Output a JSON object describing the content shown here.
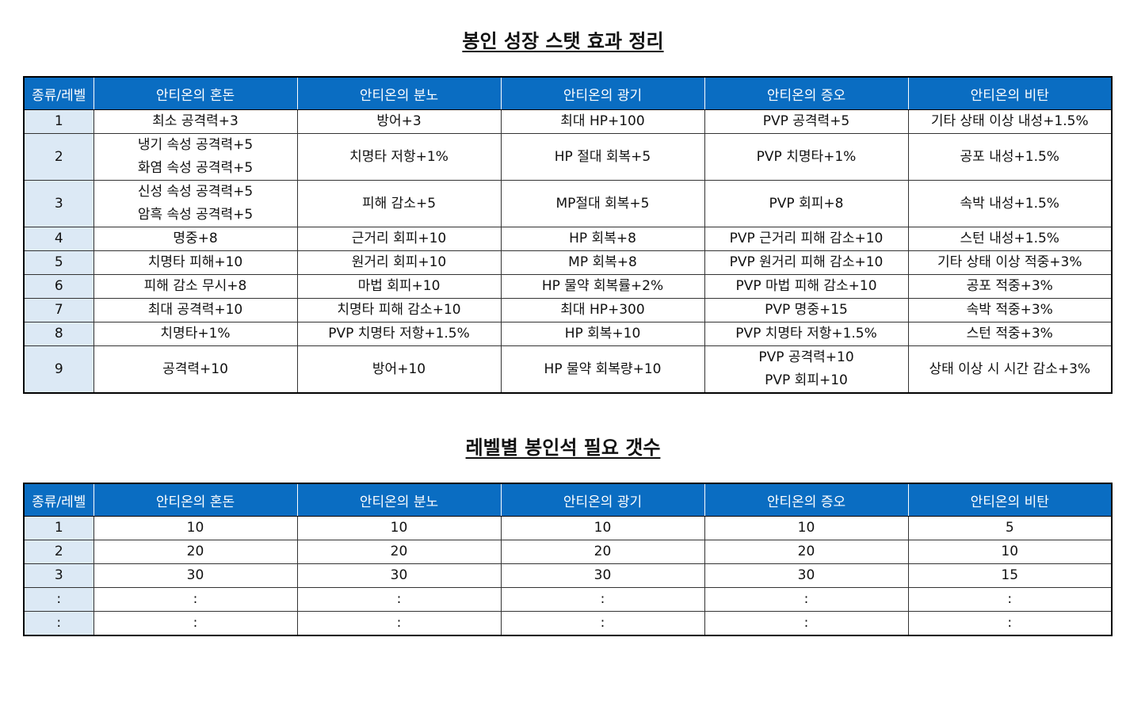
{
  "title1": "봉인 성장 스탯 효과 정리",
  "title2": "레벨별 봉인석 필요 갯수",
  "header_color": "#0a6dc2",
  "level_cell_color": "#dce9f5",
  "headers": [
    "종류/레벨",
    "안티온의 혼돈",
    "안티온의 분노",
    "안티온의 광기",
    "안티온의 증오",
    "안티온의 비탄"
  ],
  "stat_rows": [
    {
      "level": "1",
      "cells": [
        [
          "최소 공격력+3"
        ],
        [
          "방어+3"
        ],
        [
          "최대 HP+100"
        ],
        [
          "PVP 공격력+5"
        ],
        [
          "기타 상태 이상 내성+1.5%"
        ]
      ]
    },
    {
      "level": "2",
      "cells": [
        [
          "냉기 속성 공격력+5",
          "화염 속성 공격력+5"
        ],
        [
          "치명타 저항+1%"
        ],
        [
          "HP 절대 회복+5"
        ],
        [
          "PVP 치명타+1%"
        ],
        [
          "공포 내성+1.5%"
        ]
      ]
    },
    {
      "level": "3",
      "cells": [
        [
          "신성 속성 공격력+5",
          "암흑 속성 공격력+5"
        ],
        [
          "피해 감소+5"
        ],
        [
          "MP절대 회복+5"
        ],
        [
          "PVP 회피+8"
        ],
        [
          "속박 내성+1.5%"
        ]
      ]
    },
    {
      "level": "4",
      "cells": [
        [
          "명중+8"
        ],
        [
          "근거리 회피+10"
        ],
        [
          "HP 회복+8"
        ],
        [
          "PVP 근거리 피해 감소+10"
        ],
        [
          "스턴 내성+1.5%"
        ]
      ]
    },
    {
      "level": "5",
      "cells": [
        [
          "치명타 피해+10"
        ],
        [
          "원거리 회피+10"
        ],
        [
          "MP 회복+8"
        ],
        [
          "PVP 원거리 피해 감소+10"
        ],
        [
          "기타 상태 이상 적중+3%"
        ]
      ]
    },
    {
      "level": "6",
      "cells": [
        [
          "피해 감소 무시+8"
        ],
        [
          "마법 회피+10"
        ],
        [
          "HP 물약 회복률+2%"
        ],
        [
          "PVP 마법 피해 감소+10"
        ],
        [
          "공포 적중+3%"
        ]
      ]
    },
    {
      "level": "7",
      "cells": [
        [
          "최대 공격력+10"
        ],
        [
          "치명타 피해 감소+10"
        ],
        [
          "최대 HP+300"
        ],
        [
          "PVP 명중+15"
        ],
        [
          "속박 적중+3%"
        ]
      ]
    },
    {
      "level": "8",
      "cells": [
        [
          "치명타+1%"
        ],
        [
          "PVP 치명타 저항+1.5%"
        ],
        [
          "HP 회복+10"
        ],
        [
          "PVP 치명타 저항+1.5%"
        ],
        [
          "스턴 적중+3%"
        ]
      ]
    },
    {
      "level": "9",
      "cells": [
        [
          "공격력+10"
        ],
        [
          "방어+10"
        ],
        [
          "HP 물약 회복량+10"
        ],
        [
          "PVP 공격력+10",
          "PVP 회피+10"
        ],
        [
          "상태 이상 시 시간 감소+3%"
        ]
      ]
    }
  ],
  "count_rows": [
    {
      "level": "1",
      "cells": [
        "10",
        "10",
        "10",
        "10",
        "5"
      ]
    },
    {
      "level": "2",
      "cells": [
        "20",
        "20",
        "20",
        "20",
        "10"
      ]
    },
    {
      "level": "3",
      "cells": [
        "30",
        "30",
        "30",
        "30",
        "15"
      ]
    },
    {
      "level": ":",
      "cells": [
        ":",
        ":",
        ":",
        ":",
        ":"
      ]
    },
    {
      "level": ":",
      "cells": [
        ":",
        ":",
        ":",
        ":",
        ":"
      ]
    }
  ]
}
